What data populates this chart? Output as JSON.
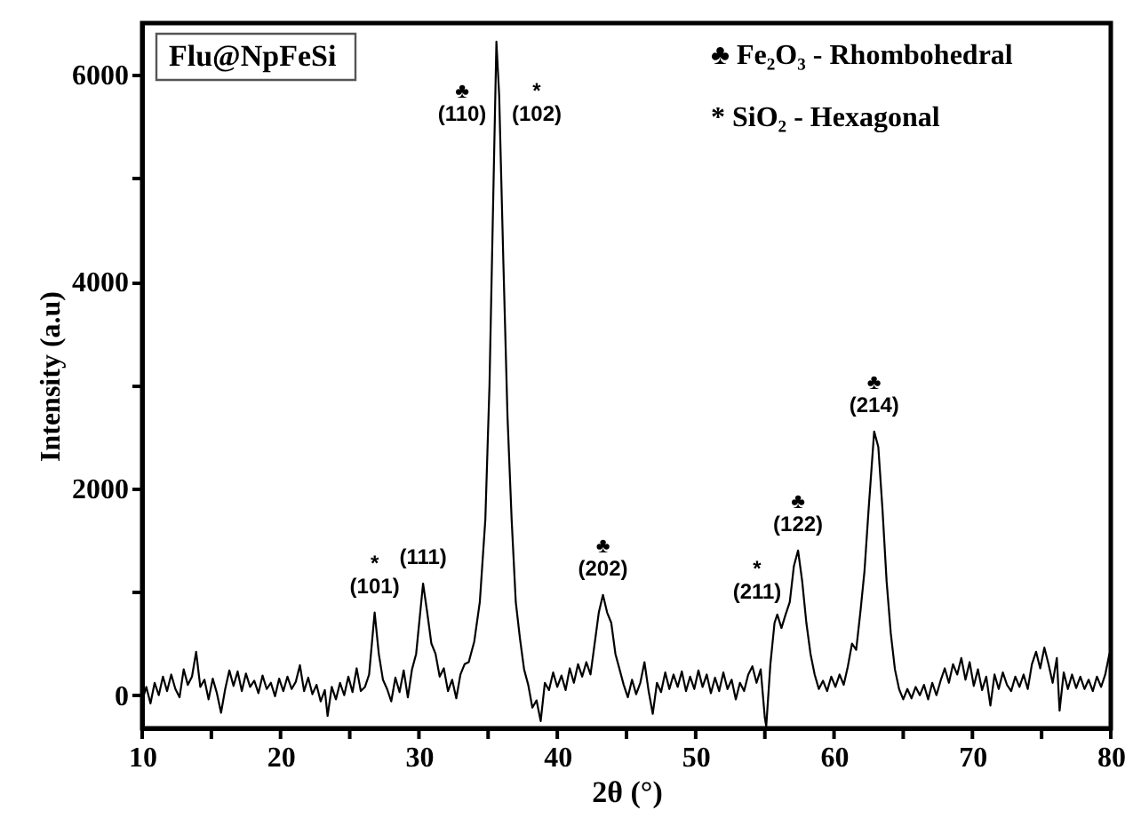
{
  "chart_data": {
    "type": "line",
    "xlabel": "2θ (°)",
    "ylabel": "Intensity (a.u)",
    "xlim": [
      10,
      80
    ],
    "ylim": [
      -320,
      6500
    ],
    "xticks": [
      10,
      {
        "value": 15,
        "label": null
      },
      20,
      {
        "value": 25,
        "label": null
      },
      30,
      {
        "value": 35,
        "label": null
      },
      40,
      {
        "value": 45,
        "label": null
      },
      50,
      {
        "value": 55,
        "label": null
      },
      60,
      {
        "value": 65,
        "label": null
      },
      70,
      {
        "value": 75,
        "label": null
      },
      80
    ],
    "yticks": [
      0,
      {
        "value": 1000,
        "label": null
      },
      2000,
      {
        "value": 3000,
        "label": null
      },
      4000,
      {
        "value": 5000,
        "label": null
      },
      6000
    ],
    "grid": false,
    "marker": "none",
    "line_style": "solid",
    "series": [
      {
        "color": "#000000",
        "x": [
          10,
          10.3,
          10.6,
          10.9,
          11.2,
          11.5,
          11.8,
          12.1,
          12.4,
          12.7,
          13,
          13.3,
          13.6,
          13.9,
          14.2,
          14.5,
          14.8,
          15.1,
          15.4,
          15.7,
          16,
          16.3,
          16.6,
          16.9,
          17.2,
          17.5,
          17.8,
          18.1,
          18.4,
          18.7,
          19,
          19.3,
          19.6,
          19.9,
          20.2,
          20.5,
          20.8,
          21.1,
          21.4,
          21.7,
          22,
          22.3,
          22.6,
          22.9,
          23.2,
          23.4,
          23.7,
          24,
          24.3,
          24.6,
          24.9,
          25.2,
          25.5,
          25.8,
          26.1,
          26.4,
          26.8,
          27.1,
          27.4,
          27.7,
          28,
          28.3,
          28.6,
          28.9,
          29.2,
          29.5,
          29.8,
          30.3,
          30.6,
          30.9,
          31.2,
          31.5,
          31.8,
          32.1,
          32.4,
          32.7,
          33,
          33.3,
          33.6,
          34,
          34.4,
          34.8,
          35.1,
          35.4,
          35.6,
          35.8,
          36.1,
          36.4,
          36.7,
          37,
          37.3,
          37.6,
          37.9,
          38.2,
          38.5,
          38.8,
          39.1,
          39.4,
          39.7,
          40,
          40.3,
          40.6,
          40.9,
          41.2,
          41.5,
          41.8,
          42.1,
          42.4,
          42.7,
          43,
          43.3,
          43.6,
          43.9,
          44.2,
          44.5,
          44.8,
          45.1,
          45.4,
          45.7,
          46,
          46.3,
          46.6,
          46.9,
          47.2,
          47.5,
          47.8,
          48.1,
          48.4,
          48.7,
          49,
          49.3,
          49.6,
          49.9,
          50.2,
          50.5,
          50.8,
          51.1,
          51.4,
          51.7,
          52,
          52.3,
          52.6,
          52.9,
          53.2,
          53.5,
          53.8,
          54.1,
          54.4,
          54.7,
          55,
          55.1,
          55.4,
          55.7,
          55.9,
          56.2,
          56.5,
          56.8,
          57.1,
          57.4,
          57.7,
          58,
          58.3,
          58.6,
          58.9,
          59.2,
          59.5,
          59.8,
          60.1,
          60.4,
          60.7,
          61,
          61.3,
          61.6,
          61.9,
          62.2,
          62.5,
          62.9,
          63.2,
          63.5,
          63.8,
          64.1,
          64.4,
          64.7,
          65,
          65.3,
          65.6,
          65.9,
          66.2,
          66.5,
          66.8,
          67.1,
          67.4,
          67.7,
          68,
          68.3,
          68.6,
          68.9,
          69.2,
          69.5,
          69.8,
          70.1,
          70.4,
          70.7,
          71,
          71.3,
          71.6,
          71.9,
          72.2,
          72.5,
          72.8,
          73.1,
          73.4,
          73.7,
          74,
          74.3,
          74.6,
          74.9,
          75.2,
          75.5,
          75.8,
          76.1,
          76.3,
          76.6,
          76.9,
          77.2,
          77.5,
          77.8,
          78.1,
          78.4,
          78.7,
          79,
          79.3,
          79.6,
          79.9,
          80
        ],
        "values": [
          -50,
          80,
          -80,
          120,
          0,
          180,
          40,
          200,
          60,
          -20,
          250,
          100,
          180,
          420,
          80,
          150,
          -40,
          160,
          20,
          -170,
          60,
          240,
          90,
          230,
          40,
          210,
          80,
          140,
          20,
          190,
          60,
          120,
          -10,
          160,
          40,
          180,
          60,
          130,
          290,
          40,
          170,
          10,
          100,
          -60,
          50,
          -200,
          80,
          -40,
          120,
          0,
          180,
          30,
          260,
          40,
          80,
          200,
          800,
          400,
          150,
          60,
          -60,
          170,
          30,
          240,
          -20,
          250,
          400,
          1080,
          800,
          500,
          400,
          180,
          260,
          40,
          150,
          -30,
          200,
          300,
          320,
          520,
          900,
          1700,
          3000,
          5000,
          6320,
          5800,
          4200,
          2700,
          1700,
          900,
          550,
          250,
          100,
          -120,
          -50,
          -250,
          120,
          50,
          220,
          80,
          190,
          50,
          260,
          120,
          300,
          180,
          320,
          200,
          500,
          800,
          970,
          800,
          700,
          400,
          250,
          100,
          -20,
          150,
          10,
          120,
          320,
          40,
          -180,
          120,
          30,
          220,
          60,
          200,
          80,
          230,
          40,
          180,
          60,
          240,
          80,
          200,
          20,
          170,
          40,
          220,
          60,
          150,
          -40,
          120,
          40,
          200,
          280,
          120,
          250,
          -220,
          -300,
          300,
          700,
          780,
          650,
          780,
          900,
          1250,
          1400,
          1100,
          700,
          400,
          200,
          60,
          140,
          40,
          180,
          80,
          200,
          100,
          280,
          500,
          440,
          800,
          1200,
          1800,
          2550,
          2400,
          1800,
          1100,
          600,
          250,
          60,
          -40,
          60,
          -30,
          80,
          0,
          100,
          -40,
          120,
          0,
          140,
          260,
          120,
          300,
          200,
          360,
          150,
          320,
          90,
          250,
          50,
          180,
          -100,
          200,
          60,
          220,
          100,
          40,
          180,
          80,
          200,
          60,
          300,
          420,
          260,
          460,
          300,
          120,
          360,
          -150,
          220,
          60,
          200,
          70,
          180,
          60,
          150,
          40,
          180,
          80,
          200,
          400,
          150
        ]
      }
    ],
    "annotations": [
      "Flu@NpFeSi",
      "♣ Fe₂O₃ - Rhombohedral",
      "* SiO₂ - Hexagonal",
      "♣\n(110)",
      "*\n(102)",
      "*\n(211)",
      {
        "text": "*\n(101)",
        "x": 26.8,
        "y": 800
      },
      {
        "text": "(111)",
        "x": 30.3,
        "y": 1080
      },
      {
        "text": "♣\n(202)",
        "x": 43.3,
        "y": 970
      },
      {
        "text": "♣\n(122)",
        "x": 57.4,
        "y": 1400
      },
      {
        "text": "♣\n(214)",
        "x": 62.9,
        "y": 2550
      }
    ]
  }
}
